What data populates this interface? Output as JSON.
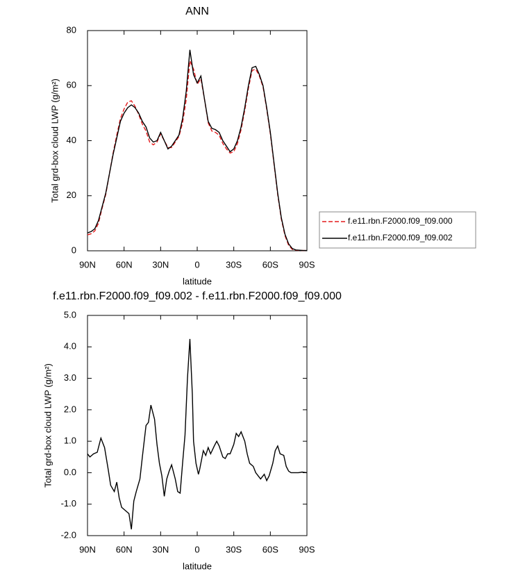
{
  "chart_data": [
    {
      "type": "line",
      "title": "ANN",
      "xlabel": "latitude",
      "ylabel": "Total grd-box cloud LWP (g/m²)",
      "x": [
        90,
        87,
        84,
        81,
        78,
        75,
        72,
        69,
        66,
        63,
        60,
        57,
        54,
        51,
        48,
        45,
        42,
        39,
        36,
        33,
        30,
        27,
        24,
        21,
        18,
        15,
        12,
        9,
        6,
        3,
        0,
        -3,
        -6,
        -9,
        -12,
        -15,
        -18,
        -21,
        -24,
        -27,
        -30,
        -33,
        -36,
        -39,
        -42,
        -45,
        -48,
        -51,
        -54,
        -57,
        -60,
        -63,
        -66,
        -69,
        -72,
        -75,
        -78,
        -81,
        -84,
        -87,
        -90
      ],
      "series": [
        {
          "name": "f.e11.rbn.F2000.f09_f09.000",
          "color": "#e41a1c",
          "line_style": "dashed",
          "values": [
            5.8,
            6.2,
            7.2,
            10,
            15.5,
            20.5,
            28,
            35.5,
            42,
            48,
            51.5,
            54,
            54.5,
            52.5,
            49.5,
            46,
            43.5,
            39.5,
            38.5,
            39.5,
            42.5,
            40,
            37.5,
            37.5,
            39.5,
            41.5,
            46.5,
            55,
            69,
            66,
            60.5,
            62.5,
            55,
            46.5,
            43.5,
            43,
            42,
            39,
            37,
            35.5,
            36,
            39,
            44,
            51,
            59,
            65.5,
            66,
            63.5,
            59.5,
            51.5,
            42.5,
            31.5,
            20.5,
            11.5,
            5.5,
            2,
            0.5,
            0.2,
            0.1,
            0.1,
            0.1
          ]
        },
        {
          "name": "f.e11.rbn.F2000.f09_f09.002",
          "color": "#000000",
          "line_style": "solid",
          "values": [
            6.5,
            7,
            8,
            11,
            16,
            21,
            28,
            35,
            41,
            47,
            50,
            52,
            53,
            52,
            50,
            47,
            45,
            41,
            39.5,
            40,
            43,
            40,
            37,
            38,
            40,
            42,
            48,
            58,
            73,
            64,
            61,
            63.5,
            55,
            47,
            44.5,
            44,
            43,
            40,
            38,
            36,
            37,
            40,
            45,
            52,
            60,
            66.5,
            67,
            64,
            60,
            52,
            43,
            32,
            21,
            12,
            6,
            2.5,
            0.8,
            0.3,
            0.2,
            0.1,
            0.1
          ]
        }
      ],
      "xlim": [
        90,
        -90
      ],
      "xticks": [
        {
          "value": 90,
          "label": "90N"
        },
        {
          "value": 60,
          "label": "60N"
        },
        {
          "value": 30,
          "label": "30N"
        },
        0,
        {
          "value": -30,
          "label": "30S"
        },
        {
          "value": -60,
          "label": "60S"
        },
        {
          "value": -90,
          "label": "90S"
        }
      ],
      "ylim": [
        0,
        80
      ],
      "yticks": [
        0,
        20,
        40,
        60,
        80
      ],
      "legend": "right"
    },
    {
      "type": "line",
      "title": "f.e11.rbn.F2000.f09_f09.002 - f.e11.rbn.F2000.f09_f09.000",
      "xlabel": "latitude",
      "ylabel": "Total grd-box cloud LWP (g/m²)",
      "x": [
        90,
        88,
        85,
        82,
        79,
        76,
        73,
        71,
        68,
        66,
        64,
        62,
        59,
        56,
        54,
        52,
        50,
        47,
        45,
        42,
        40,
        38,
        35,
        33,
        31,
        29,
        27,
        25,
        23,
        21,
        18,
        16,
        14,
        12,
        10,
        8,
        6,
        4,
        3,
        1,
        -1,
        -2,
        -5,
        -7,
        -9,
        -11,
        -14,
        -16,
        -18,
        -21,
        -23,
        -25,
        -27,
        -30,
        -32,
        -34,
        -36,
        -39,
        -41,
        -43,
        -46,
        -48,
        -50,
        -52,
        -55,
        -57,
        -59,
        -62,
        -64,
        -66,
        -68,
        -71,
        -73,
        -75,
        -77,
        -80,
        -83,
        -86,
        -90
      ],
      "color": "#000000",
      "values": [
        0.6,
        0.5,
        0.6,
        0.65,
        1.1,
        0.8,
        0.1,
        -0.4,
        -0.6,
        -0.3,
        -0.8,
        -1.1,
        -1.2,
        -1.3,
        -1.8,
        -0.9,
        -0.6,
        -0.2,
        0.5,
        1.5,
        1.6,
        2.15,
        1.7,
        0.9,
        0.3,
        -0.1,
        -0.75,
        -0.2,
        0.05,
        0.25,
        -0.2,
        -0.6,
        -0.65,
        0.3,
        1.2,
        3.0,
        4.25,
        2.5,
        1.0,
        0.3,
        -0.05,
        0.1,
        0.7,
        0.55,
        0.8,
        0.6,
        0.85,
        1.0,
        0.85,
        0.5,
        0.45,
        0.6,
        0.6,
        0.9,
        1.25,
        1.15,
        1.3,
        1.0,
        0.6,
        0.3,
        0.2,
        0.0,
        -0.1,
        -0.2,
        -0.05,
        -0.25,
        -0.1,
        0.3,
        0.7,
        0.85,
        0.6,
        0.55,
        0.2,
        0.05,
        0.0,
        0.0,
        0.0,
        0.02,
        0.0
      ],
      "xlim": [
        90,
        -90
      ],
      "xticks": [
        {
          "value": 90,
          "label": "90N"
        },
        {
          "value": 60,
          "label": "60N"
        },
        {
          "value": 30,
          "label": "30N"
        },
        0,
        {
          "value": -30,
          "label": "30S"
        },
        {
          "value": -60,
          "label": "60S"
        },
        {
          "value": -90,
          "label": "90S"
        }
      ],
      "ylim": [
        -2,
        5
      ],
      "yticks": [
        {
          "value": -2,
          "label": "-2.0"
        },
        {
          "value": -1,
          "label": "-1.0"
        },
        {
          "value": 0,
          "label": "0.0"
        },
        {
          "value": 1,
          "label": "1.0"
        },
        {
          "value": 2,
          "label": "2.0"
        },
        {
          "value": 3,
          "label": "3.0"
        },
        {
          "value": 4,
          "label": "4.0"
        },
        {
          "value": 5,
          "label": "5.0"
        }
      ]
    }
  ]
}
